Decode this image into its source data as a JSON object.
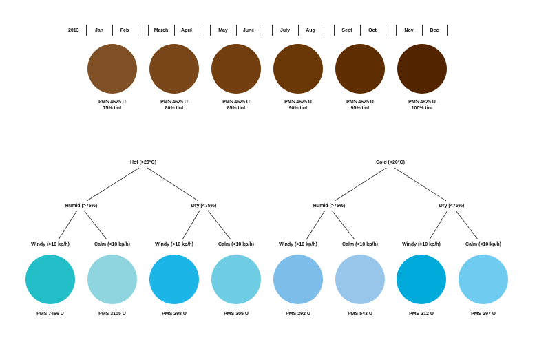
{
  "year": "2013",
  "month_pairs": [
    {
      "a": "Jan",
      "b": "Feb"
    },
    {
      "a": "March",
      "b": "April"
    },
    {
      "a": "May",
      "b": "June"
    },
    {
      "a": "July",
      "b": "Aug"
    },
    {
      "a": "Sept",
      "b": "Oct"
    },
    {
      "a": "Nov",
      "b": "Dec"
    }
  ],
  "brown_swatches": [
    {
      "pms": "PMS 4625 U",
      "tint": "75% tint",
      "color": "#7f4f25"
    },
    {
      "pms": "PMS 4625 U",
      "tint": "80% tint",
      "color": "#794619"
    },
    {
      "pms": "PMS 4625 U",
      "tint": "85% tint",
      "color": "#723e0f"
    },
    {
      "pms": "PMS 4625 U",
      "tint": "90% tint",
      "color": "#6a3706"
    },
    {
      "pms": "PMS 4625 U",
      "tint": "95% tint",
      "color": "#5e2d01"
    },
    {
      "pms": "PMS 4625 U",
      "tint": "100% tint",
      "color": "#532400"
    }
  ],
  "trees": [
    {
      "root": "Hot (>20°C)",
      "humid": "Humid (>75%)",
      "dry": "Dry (<75%)",
      "leaves": [
        "Windy (>10 kp/h)",
        "Calm (<10 kp/h)",
        "Windy (>10 kp/h)",
        "Calm (<10 kp/h)"
      ]
    },
    {
      "root": "Cold (<20°C)",
      "humid": "Humid (>75%)",
      "dry": "Dry (<75%)",
      "leaves": [
        "Windy (>10 kp/h)",
        "Calm (<10 kp/h)",
        "Windy (>10 kp/h)",
        "Calm (<10 kp/h)"
      ]
    }
  ],
  "blue_swatches": [
    {
      "pms": "PMS 7466 U",
      "color": "#22bfc9"
    },
    {
      "pms": "PMS 3105 U",
      "color": "#8fd5df"
    },
    {
      "pms": "PMS 298 U",
      "color": "#1cb5e8"
    },
    {
      "pms": "PMS 305 U",
      "color": "#6ecde3"
    },
    {
      "pms": "PMS 292 U",
      "color": "#7dbde9"
    },
    {
      "pms": "PMS 543 U",
      "color": "#97c6ea"
    },
    {
      "pms": "PMS 312 U",
      "color": "#00abdb"
    },
    {
      "pms": "PMS 297 U",
      "color": "#6fcbf0"
    }
  ]
}
